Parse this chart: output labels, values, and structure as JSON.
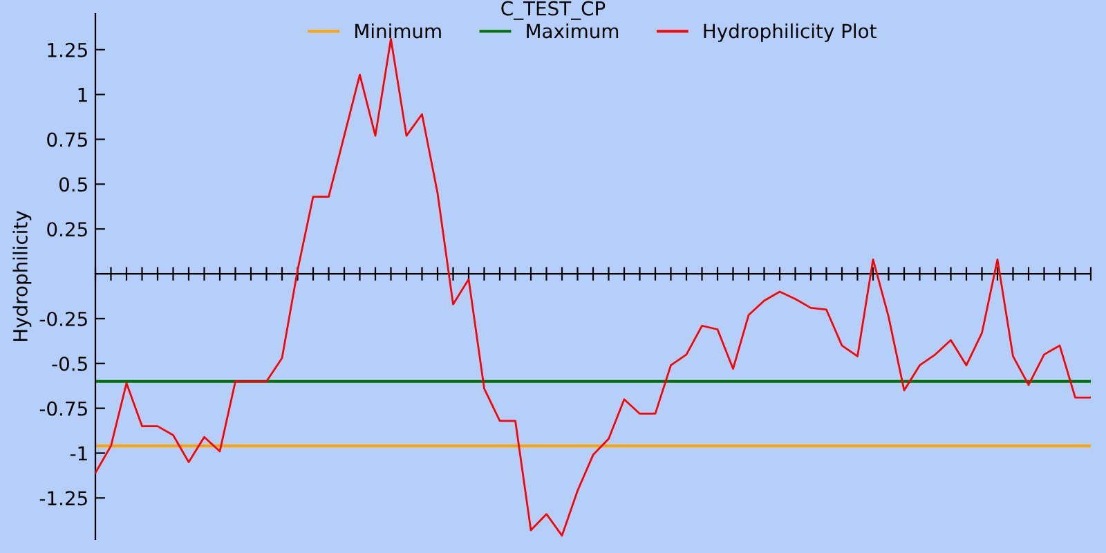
{
  "chart_data": {
    "type": "line",
    "title": "C_TEST_CP",
    "ylabel": "Hydrophilicity",
    "categories": [
      null,
      null,
      null,
      null,
      null,
      null,
      null,
      null,
      null,
      null,
      null,
      null,
      null,
      null,
      null,
      null,
      null,
      null,
      null,
      null,
      null,
      null,
      null,
      null,
      null,
      null,
      null,
      null,
      null,
      null,
      null,
      null,
      null,
      null,
      null,
      null,
      null,
      null,
      null,
      null,
      null,
      null,
      null,
      null,
      null,
      null,
      null,
      null,
      null,
      null,
      null,
      null,
      null,
      null,
      null,
      null,
      null,
      null,
      null,
      null,
      null,
      null,
      null,
      null,
      null
    ],
    "series": [
      {
        "name": "Hydrophilicity Plot",
        "color": "#ff0000",
        "values": [
          -1.11,
          -0.96,
          -0.61,
          -0.85,
          -0.85,
          -0.9,
          -1.05,
          -0.91,
          -0.99,
          -0.6,
          -0.6,
          -0.6,
          -0.47,
          0.02,
          0.43,
          0.43,
          0.77,
          1.11,
          0.77,
          1.31,
          0.77,
          0.89,
          0.45,
          -0.17,
          -0.03,
          -0.64,
          -0.82,
          -0.82,
          -1.43,
          -1.34,
          -1.46,
          -1.21,
          -1.01,
          -0.92,
          -0.7,
          -0.78,
          -0.78,
          -0.51,
          -0.45,
          -0.29,
          -0.31,
          -0.53,
          -0.23,
          -0.15,
          -0.1,
          -0.14,
          -0.19,
          -0.2,
          -0.4,
          -0.46,
          0.08,
          -0.24,
          -0.65,
          -0.51,
          -0.45,
          -0.37,
          -0.51,
          -0.33,
          0.08,
          -0.46,
          -0.62,
          -0.45,
          -0.4,
          -0.69,
          -0.69
        ]
      }
    ],
    "ref_lines": [
      {
        "axis": "y",
        "value": -0.96,
        "label": "Minimum",
        "color": "#ffa500"
      },
      {
        "axis": "y",
        "value": -0.6,
        "label": "Maximum",
        "color": "#007000"
      }
    ],
    "ylim": [
      -1.48,
      1.45
    ],
    "yticks": [
      1.25,
      1,
      0.75,
      0.5,
      0.25,
      -0.25,
      -0.5,
      -0.75,
      -1,
      -1.25
    ],
    "grid": false,
    "legend": "top",
    "marker": "none",
    "line_style": "solid"
  }
}
